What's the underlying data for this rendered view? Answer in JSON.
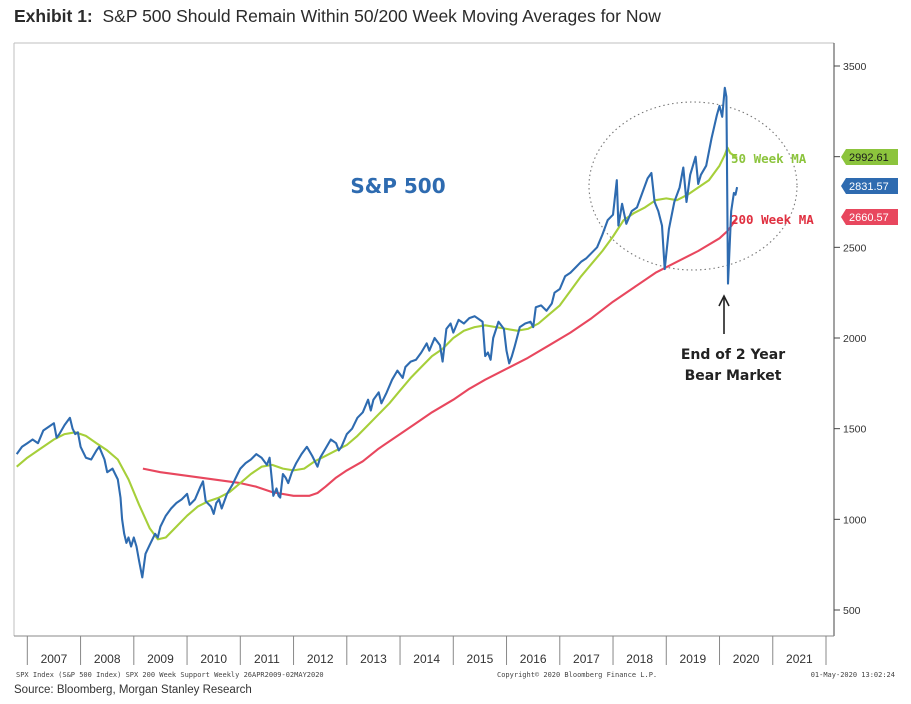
{
  "title": {
    "prefix": "Exhibit 1:",
    "text": "S&P 500 Should Remain Within 50/200 Week Moving Averages for Now"
  },
  "source": "Source: Bloomberg, Morgan Stanley Research",
  "chart_data": {
    "type": "line",
    "title": "S&P 500",
    "x_range": [
      2006.75,
      2022.15
    ],
    "ylim": [
      400,
      3600
    ],
    "y_ticks": [
      500,
      1000,
      1500,
      2000,
      2500,
      3000,
      3500
    ],
    "x_tick_labels": [
      "2007",
      "2008",
      "2009",
      "2010",
      "2011",
      "2012",
      "2013",
      "2014",
      "2015",
      "2016",
      "2017",
      "2018",
      "2019",
      "2020",
      "2021"
    ],
    "grid": false,
    "colors": {
      "spx": "#2e6bb0",
      "ma50": "#a6cf3a",
      "ma200": "#e8475e",
      "label_blue": "#2e6bb0",
      "label_green": "#8cc43d",
      "label_red": "#e03040"
    },
    "series": [
      {
        "name": "S&P 500",
        "last_value": "2831.57",
        "points": [
          [
            2006.8,
            1360
          ],
          [
            2006.9,
            1400
          ],
          [
            2007.0,
            1420
          ],
          [
            2007.1,
            1440
          ],
          [
            2007.2,
            1420
          ],
          [
            2007.3,
            1490
          ],
          [
            2007.4,
            1510
          ],
          [
            2007.5,
            1530
          ],
          [
            2007.55,
            1450
          ],
          [
            2007.6,
            1470
          ],
          [
            2007.7,
            1520
          ],
          [
            2007.8,
            1560
          ],
          [
            2007.85,
            1500
          ],
          [
            2007.9,
            1470
          ],
          [
            2007.95,
            1480
          ],
          [
            2008.0,
            1400
          ],
          [
            2008.05,
            1370
          ],
          [
            2008.1,
            1340
          ],
          [
            2008.2,
            1330
          ],
          [
            2008.3,
            1380
          ],
          [
            2008.35,
            1400
          ],
          [
            2008.45,
            1330
          ],
          [
            2008.5,
            1260
          ],
          [
            2008.6,
            1280
          ],
          [
            2008.7,
            1220
          ],
          [
            2008.75,
            1120
          ],
          [
            2008.78,
            1000
          ],
          [
            2008.82,
            920
          ],
          [
            2008.86,
            870
          ],
          [
            2008.9,
            900
          ],
          [
            2008.95,
            850
          ],
          [
            2009.0,
            900
          ],
          [
            2009.05,
            850
          ],
          [
            2009.1,
            770
          ],
          [
            2009.16,
            680
          ],
          [
            2009.22,
            810
          ],
          [
            2009.3,
            860
          ],
          [
            2009.4,
            920
          ],
          [
            2009.45,
            900
          ],
          [
            2009.5,
            960
          ],
          [
            2009.6,
            1020
          ],
          [
            2009.7,
            1060
          ],
          [
            2009.8,
            1090
          ],
          [
            2009.9,
            1110
          ],
          [
            2010.0,
            1140
          ],
          [
            2010.05,
            1080
          ],
          [
            2010.15,
            1110
          ],
          [
            2010.25,
            1180
          ],
          [
            2010.3,
            1210
          ],
          [
            2010.35,
            1100
          ],
          [
            2010.45,
            1070
          ],
          [
            2010.5,
            1030
          ],
          [
            2010.55,
            1090
          ],
          [
            2010.6,
            1110
          ],
          [
            2010.65,
            1060
          ],
          [
            2010.75,
            1140
          ],
          [
            2010.85,
            1190
          ],
          [
            2010.95,
            1250
          ],
          [
            2011.0,
            1280
          ],
          [
            2011.1,
            1310
          ],
          [
            2011.2,
            1330
          ],
          [
            2011.3,
            1360
          ],
          [
            2011.4,
            1340
          ],
          [
            2011.5,
            1300
          ],
          [
            2011.55,
            1340
          ],
          [
            2011.6,
            1200
          ],
          [
            2011.62,
            1130
          ],
          [
            2011.68,
            1170
          ],
          [
            2011.72,
            1130
          ],
          [
            2011.75,
            1120
          ],
          [
            2011.8,
            1250
          ],
          [
            2011.85,
            1230
          ],
          [
            2011.9,
            1200
          ],
          [
            2011.97,
            1260
          ],
          [
            2012.05,
            1310
          ],
          [
            2012.15,
            1360
          ],
          [
            2012.25,
            1400
          ],
          [
            2012.35,
            1350
          ],
          [
            2012.45,
            1290
          ],
          [
            2012.5,
            1340
          ],
          [
            2012.6,
            1390
          ],
          [
            2012.7,
            1440
          ],
          [
            2012.8,
            1420
          ],
          [
            2012.85,
            1380
          ],
          [
            2012.9,
            1400
          ],
          [
            2013.0,
            1470
          ],
          [
            2013.1,
            1500
          ],
          [
            2013.2,
            1560
          ],
          [
            2013.3,
            1590
          ],
          [
            2013.4,
            1660
          ],
          [
            2013.45,
            1600
          ],
          [
            2013.5,
            1660
          ],
          [
            2013.6,
            1700
          ],
          [
            2013.65,
            1640
          ],
          [
            2013.75,
            1700
          ],
          [
            2013.85,
            1770
          ],
          [
            2013.95,
            1820
          ],
          [
            2014.05,
            1780
          ],
          [
            2014.1,
            1840
          ],
          [
            2014.2,
            1870
          ],
          [
            2014.3,
            1880
          ],
          [
            2014.4,
            1920
          ],
          [
            2014.5,
            1970
          ],
          [
            2014.55,
            1930
          ],
          [
            2014.65,
            2000
          ],
          [
            2014.75,
            1960
          ],
          [
            2014.8,
            1870
          ],
          [
            2014.87,
            2050
          ],
          [
            2014.95,
            2080
          ],
          [
            2015.0,
            2030
          ],
          [
            2015.1,
            2100
          ],
          [
            2015.2,
            2080
          ],
          [
            2015.3,
            2110
          ],
          [
            2015.4,
            2120
          ],
          [
            2015.5,
            2100
          ],
          [
            2015.55,
            2090
          ],
          [
            2015.6,
            1900
          ],
          [
            2015.65,
            1920
          ],
          [
            2015.7,
            1880
          ],
          [
            2015.75,
            2000
          ],
          [
            2015.85,
            2090
          ],
          [
            2015.95,
            2050
          ],
          [
            2016.0,
            1930
          ],
          [
            2016.05,
            1860
          ],
          [
            2016.1,
            1900
          ],
          [
            2016.15,
            1950
          ],
          [
            2016.25,
            2060
          ],
          [
            2016.35,
            2080
          ],
          [
            2016.45,
            2090
          ],
          [
            2016.5,
            2060
          ],
          [
            2016.55,
            2170
          ],
          [
            2016.65,
            2180
          ],
          [
            2016.75,
            2150
          ],
          [
            2016.85,
            2190
          ],
          [
            2016.9,
            2250
          ],
          [
            2017.0,
            2270
          ],
          [
            2017.1,
            2340
          ],
          [
            2017.2,
            2360
          ],
          [
            2017.3,
            2390
          ],
          [
            2017.4,
            2420
          ],
          [
            2017.5,
            2440
          ],
          [
            2017.6,
            2470
          ],
          [
            2017.7,
            2500
          ],
          [
            2017.8,
            2570
          ],
          [
            2017.9,
            2650
          ],
          [
            2018.0,
            2680
          ],
          [
            2018.07,
            2870
          ],
          [
            2018.1,
            2620
          ],
          [
            2018.17,
            2740
          ],
          [
            2018.25,
            2630
          ],
          [
            2018.35,
            2700
          ],
          [
            2018.45,
            2720
          ],
          [
            2018.55,
            2800
          ],
          [
            2018.65,
            2880
          ],
          [
            2018.72,
            2910
          ],
          [
            2018.78,
            2750
          ],
          [
            2018.85,
            2700
          ],
          [
            2018.92,
            2620
          ],
          [
            2018.97,
            2380
          ],
          [
            2019.05,
            2600
          ],
          [
            2019.15,
            2750
          ],
          [
            2019.25,
            2830
          ],
          [
            2019.32,
            2940
          ],
          [
            2019.38,
            2750
          ],
          [
            2019.45,
            2900
          ],
          [
            2019.55,
            3000
          ],
          [
            2019.6,
            2850
          ],
          [
            2019.65,
            2900
          ],
          [
            2019.75,
            2950
          ],
          [
            2019.85,
            3100
          ],
          [
            2019.95,
            3230
          ],
          [
            2020.0,
            3280
          ],
          [
            2020.05,
            3220
          ],
          [
            2020.1,
            3380
          ],
          [
            2020.13,
            3330
          ],
          [
            2020.14,
            2950
          ],
          [
            2020.16,
            2300
          ],
          [
            2020.19,
            2500
          ],
          [
            2020.22,
            2700
          ],
          [
            2020.27,
            2800
          ],
          [
            2020.3,
            2790
          ],
          [
            2020.33,
            2832
          ]
        ]
      },
      {
        "name": "50 Week MA",
        "last_value": "2992.61",
        "points": [
          [
            2006.8,
            1290
          ],
          [
            2007.0,
            1340
          ],
          [
            2007.2,
            1380
          ],
          [
            2007.5,
            1440
          ],
          [
            2007.7,
            1470
          ],
          [
            2007.9,
            1480
          ],
          [
            2008.1,
            1460
          ],
          [
            2008.3,
            1420
          ],
          [
            2008.5,
            1380
          ],
          [
            2008.7,
            1330
          ],
          [
            2008.9,
            1220
          ],
          [
            2009.1,
            1080
          ],
          [
            2009.3,
            950
          ],
          [
            2009.45,
            890
          ],
          [
            2009.6,
            900
          ],
          [
            2009.8,
            960
          ],
          [
            2010.0,
            1020
          ],
          [
            2010.2,
            1070
          ],
          [
            2010.4,
            1100
          ],
          [
            2010.6,
            1120
          ],
          [
            2010.8,
            1150
          ],
          [
            2011.0,
            1200
          ],
          [
            2011.2,
            1250
          ],
          [
            2011.4,
            1290
          ],
          [
            2011.6,
            1300
          ],
          [
            2011.8,
            1280
          ],
          [
            2012.0,
            1270
          ],
          [
            2012.2,
            1280
          ],
          [
            2012.4,
            1320
          ],
          [
            2012.6,
            1350
          ],
          [
            2012.8,
            1380
          ],
          [
            2013.0,
            1410
          ],
          [
            2013.2,
            1460
          ],
          [
            2013.4,
            1520
          ],
          [
            2013.6,
            1580
          ],
          [
            2013.8,
            1640
          ],
          [
            2014.0,
            1710
          ],
          [
            2014.2,
            1780
          ],
          [
            2014.4,
            1840
          ],
          [
            2014.6,
            1900
          ],
          [
            2014.8,
            1940
          ],
          [
            2015.0,
            2000
          ],
          [
            2015.2,
            2040
          ],
          [
            2015.4,
            2060
          ],
          [
            2015.6,
            2070
          ],
          [
            2015.8,
            2060
          ],
          [
            2016.0,
            2050
          ],
          [
            2016.2,
            2040
          ],
          [
            2016.4,
            2050
          ],
          [
            2016.6,
            2080
          ],
          [
            2016.8,
            2130
          ],
          [
            2017.0,
            2180
          ],
          [
            2017.2,
            2260
          ],
          [
            2017.4,
            2340
          ],
          [
            2017.6,
            2410
          ],
          [
            2017.8,
            2480
          ],
          [
            2018.0,
            2560
          ],
          [
            2018.2,
            2650
          ],
          [
            2018.4,
            2690
          ],
          [
            2018.6,
            2720
          ],
          [
            2018.8,
            2760
          ],
          [
            2019.0,
            2770
          ],
          [
            2019.2,
            2760
          ],
          [
            2019.4,
            2790
          ],
          [
            2019.6,
            2830
          ],
          [
            2019.8,
            2870
          ],
          [
            2020.0,
            2950
          ],
          [
            2020.1,
            3010
          ],
          [
            2020.15,
            3050
          ],
          [
            2020.2,
            3020
          ],
          [
            2020.33,
            2993
          ]
        ]
      },
      {
        "name": "200 Week MA",
        "last_value": "2660.57",
        "points": [
          [
            2009.17,
            1280
          ],
          [
            2009.5,
            1260
          ],
          [
            2010.0,
            1240
          ],
          [
            2010.5,
            1220
          ],
          [
            2011.0,
            1200
          ],
          [
            2011.3,
            1180
          ],
          [
            2011.6,
            1150
          ],
          [
            2012.0,
            1130
          ],
          [
            2012.3,
            1130
          ],
          [
            2012.45,
            1145
          ],
          [
            2012.6,
            1180
          ],
          [
            2012.8,
            1230
          ],
          [
            2013.0,
            1270
          ],
          [
            2013.3,
            1320
          ],
          [
            2013.6,
            1390
          ],
          [
            2014.0,
            1470
          ],
          [
            2014.3,
            1530
          ],
          [
            2014.6,
            1590
          ],
          [
            2015.0,
            1660
          ],
          [
            2015.3,
            1720
          ],
          [
            2015.6,
            1770
          ],
          [
            2016.0,
            1830
          ],
          [
            2016.4,
            1890
          ],
          [
            2016.8,
            1960
          ],
          [
            2017.2,
            2030
          ],
          [
            2017.6,
            2110
          ],
          [
            2018.0,
            2200
          ],
          [
            2018.4,
            2280
          ],
          [
            2018.8,
            2360
          ],
          [
            2019.2,
            2420
          ],
          [
            2019.6,
            2480
          ],
          [
            2020.0,
            2550
          ],
          [
            2020.15,
            2590
          ],
          [
            2020.33,
            2661
          ]
        ]
      }
    ],
    "annotations": [
      "End of 2 Year",
      "Bear Market"
    ],
    "footer": {
      "left": "SPX Index (S&P 500 Index) SPX 200 Week Support  Weekly 26APR2009-02MAY2020",
      "center": "Copyright© 2020 Bloomberg Finance L.P.",
      "right": "01-May-2020 13:02:24"
    }
  }
}
